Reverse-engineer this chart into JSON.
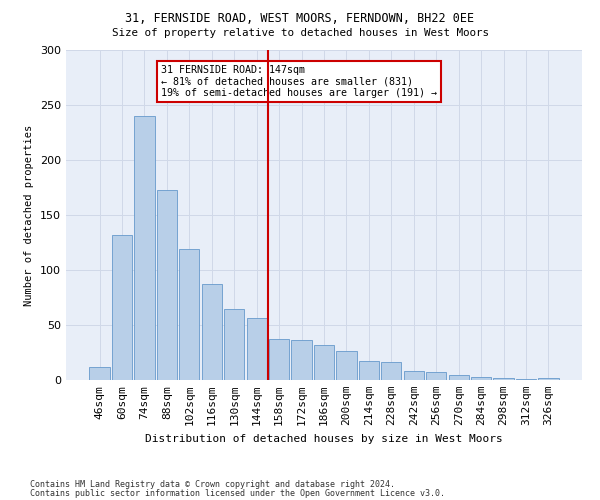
{
  "title1": "31, FERNSIDE ROAD, WEST MOORS, FERNDOWN, BH22 0EE",
  "title2": "Size of property relative to detached houses in West Moors",
  "xlabel": "Distribution of detached houses by size in West Moors",
  "ylabel": "Number of detached properties",
  "categories": [
    "46sqm",
    "60sqm",
    "74sqm",
    "88sqm",
    "102sqm",
    "116sqm",
    "130sqm",
    "144sqm",
    "158sqm",
    "172sqm",
    "186sqm",
    "200sqm",
    "214sqm",
    "228sqm",
    "242sqm",
    "256sqm",
    "270sqm",
    "284sqm",
    "298sqm",
    "312sqm",
    "326sqm"
  ],
  "values": [
    12,
    132,
    240,
    173,
    119,
    87,
    65,
    56,
    37,
    36,
    32,
    26,
    17,
    16,
    8,
    7,
    5,
    3,
    2,
    1,
    2
  ],
  "bar_color": "#b8cfe8",
  "bar_edge_color": "#6699cc",
  "vline_color": "#cc0000",
  "annotation_text": "31 FERNSIDE ROAD: 147sqm\n← 81% of detached houses are smaller (831)\n19% of semi-detached houses are larger (191) →",
  "annotation_box_color": "#ffffff",
  "annotation_box_edge": "#cc0000",
  "grid_color": "#d0d8e8",
  "bg_color": "#e8eef8",
  "footer1": "Contains HM Land Registry data © Crown copyright and database right 2024.",
  "footer2": "Contains public sector information licensed under the Open Government Licence v3.0.",
  "ylim": [
    0,
    300
  ]
}
